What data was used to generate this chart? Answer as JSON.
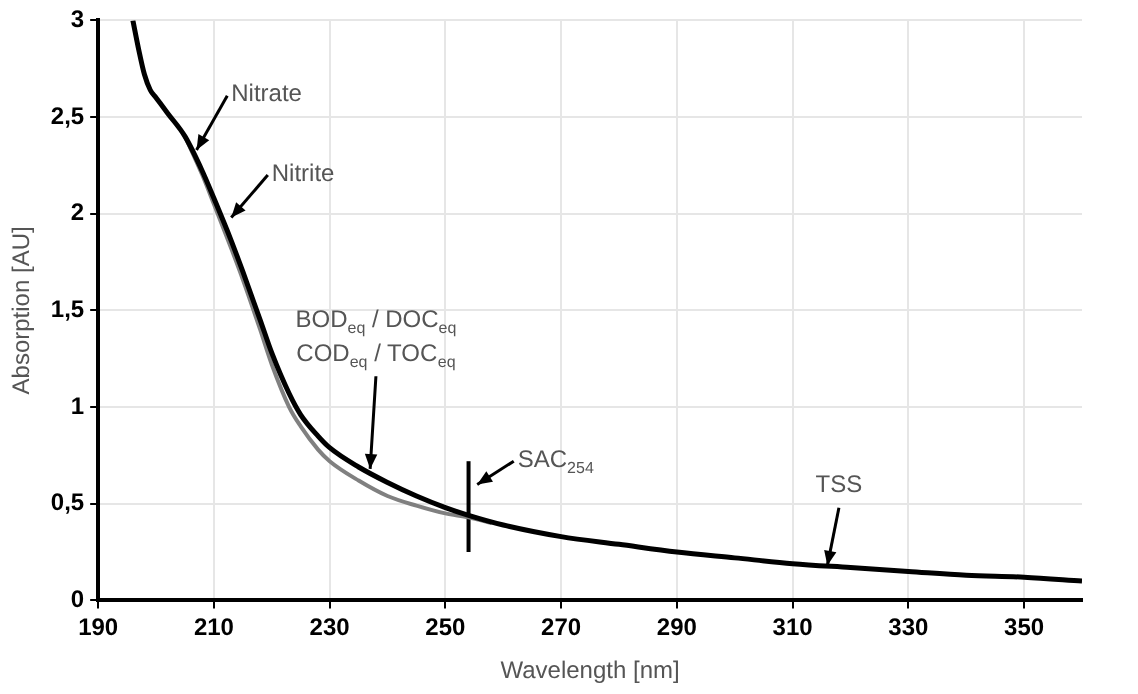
{
  "chart_data": {
    "type": "line",
    "xlabel": "Wavelength [nm]",
    "ylabel": "Absorption [AU]",
    "xlim": [
      190,
      360
    ],
    "xticks": [
      190,
      210,
      230,
      250,
      270,
      290,
      310,
      330,
      350
    ],
    "ylim": [
      0,
      3
    ],
    "yticks": [
      0,
      {
        "value": 0.5,
        "label": "0,5"
      },
      1,
      {
        "value": 1.5,
        "label": "1,5"
      },
      2,
      {
        "value": 2.5,
        "label": "2,5"
      },
      3
    ],
    "grid": true,
    "marker": "none",
    "line_style": "solid",
    "series": [
      {
        "color": "#000000",
        "x": [
          196,
          197,
          198,
          199,
          200,
          202,
          205,
          208,
          210,
          213,
          215,
          218,
          220,
          223,
          225,
          228,
          230,
          235,
          240,
          245,
          250,
          254,
          260,
          270,
          280,
          290,
          300,
          310,
          320,
          330,
          340,
          350,
          360
        ],
        "values": [
          3,
          2.85,
          2.72,
          2.64,
          2.6,
          2.52,
          2.4,
          2.22,
          2.08,
          1.86,
          1.7,
          1.45,
          1.28,
          1.07,
          0.96,
          0.85,
          0.79,
          0.69,
          0.61,
          0.54,
          0.48,
          0.44,
          0.39,
          0.33,
          0.29,
          0.25,
          0.22,
          0.19,
          0.17,
          0.15,
          0.13,
          0.12,
          0.1
        ]
      },
      {
        "color": "#808080",
        "x": [
          205,
          208,
          210,
          213,
          215,
          218,
          220,
          223,
          225,
          228,
          230,
          235,
          240,
          245,
          250,
          254,
          258
        ],
        "values": [
          2.4,
          2.2,
          2.05,
          1.82,
          1.66,
          1.4,
          1.22,
          1.0,
          0.9,
          0.78,
          0.72,
          0.62,
          0.54,
          0.49,
          0.45,
          0.43,
          0.4
        ]
      },
      {
        "color": "#000000",
        "x": [
          254,
          254
        ],
        "values": [
          0.25,
          0.72
        ]
      }
    ],
    "annotations": [
      {
        "text": "Nitrate",
        "x": 207,
        "y": 2.33
      },
      {
        "text": "Nitrite",
        "x": 213,
        "y": 1.98
      },
      "BOD$_{eq}$ / DOC$_{eq}$",
      {
        "text": "COD$_{eq}$ / TOC$_{eq}$",
        "x": 237,
        "y": 0.68
      },
      {
        "text": "SAC$_{254}$",
        "x": 255.5,
        "y": 0.6
      },
      {
        "text": "TSS",
        "x": 316,
        "y": 0.18
      }
    ]
  }
}
